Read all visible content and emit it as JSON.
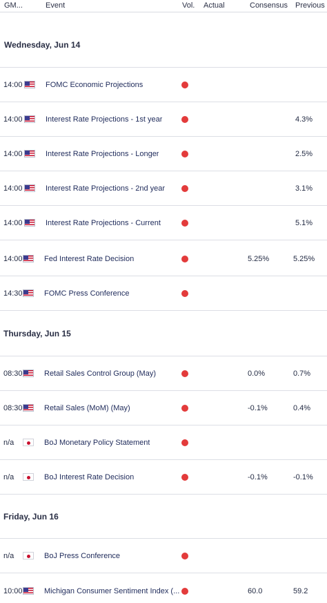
{
  "colors": {
    "volatility_high": "#e33b3b",
    "divider": "#dcdee5",
    "text": "#1e2a5a"
  },
  "header": {
    "gmt": "GM...",
    "event": "Event",
    "vol": "Vol.",
    "actual": "Actual",
    "consensus": "Consensus",
    "previous": "Previous"
  },
  "days": [
    {
      "label": "Wednesday, Jun 14",
      "events": [
        {
          "time": "14:00",
          "country": "us-flag-icon",
          "name": "FOMC Economic Projections",
          "volatility": "high",
          "actual": "",
          "consensus": "",
          "previous": ""
        },
        {
          "time": "14:00",
          "country": "us-flag-icon",
          "name": "Interest Rate Projections - 1st year",
          "volatility": "high",
          "actual": "",
          "consensus": "",
          "previous": "4.3%"
        },
        {
          "time": "14:00",
          "country": "us-flag-icon",
          "name": "Interest Rate Projections - Longer",
          "volatility": "high",
          "actual": "",
          "consensus": "",
          "previous": "2.5%"
        },
        {
          "time": "14:00",
          "country": "us-flag-icon",
          "name": "Interest Rate Projections - 2nd year",
          "volatility": "high",
          "actual": "",
          "consensus": "",
          "previous": "3.1%"
        },
        {
          "time": "14:00",
          "country": "us-flag-icon",
          "name": "Interest Rate Projections - Current",
          "volatility": "high",
          "actual": "",
          "consensus": "",
          "previous": "5.1%"
        },
        {
          "time": "14:00",
          "country": "us-flag-icon",
          "name": "Fed Interest Rate Decision",
          "volatility": "high",
          "actual": "",
          "consensus": "5.25%",
          "previous": "5.25%"
        },
        {
          "time": "14:30",
          "country": "us-flag-icon",
          "name": "FOMC Press Conference",
          "volatility": "high",
          "actual": "",
          "consensus": "",
          "previous": ""
        }
      ]
    },
    {
      "label": "Thursday, Jun 15",
      "events": [
        {
          "time": "08:30",
          "country": "us-flag-icon",
          "name": "Retail Sales Control Group (May)",
          "volatility": "high",
          "actual": "",
          "consensus": "0.0%",
          "previous": "0.7%"
        },
        {
          "time": "08:30",
          "country": "us-flag-icon",
          "name": "Retail Sales (MoM) (May)",
          "volatility": "high",
          "actual": "",
          "consensus": "-0.1%",
          "previous": "0.4%"
        },
        {
          "time": "n/a",
          "country": "jp-flag-icon",
          "name": "BoJ Monetary Policy Statement",
          "volatility": "high",
          "actual": "",
          "consensus": "",
          "previous": ""
        },
        {
          "time": "n/a",
          "country": "jp-flag-icon",
          "name": "BoJ Interest Rate Decision",
          "volatility": "high",
          "actual": "",
          "consensus": "-0.1%",
          "previous": "-0.1%"
        }
      ]
    },
    {
      "label": "Friday, Jun 16",
      "events": [
        {
          "time": "n/a",
          "country": "jp-flag-icon",
          "name": "BoJ Press Conference",
          "volatility": "high",
          "actual": "",
          "consensus": "",
          "previous": ""
        },
        {
          "time": "10:00",
          "country": "us-flag-icon",
          "name": "Michigan Consumer Sentiment Index (...",
          "volatility": "high",
          "actual": "",
          "consensus": "60.0",
          "previous": "59.2"
        }
      ]
    }
  ]
}
